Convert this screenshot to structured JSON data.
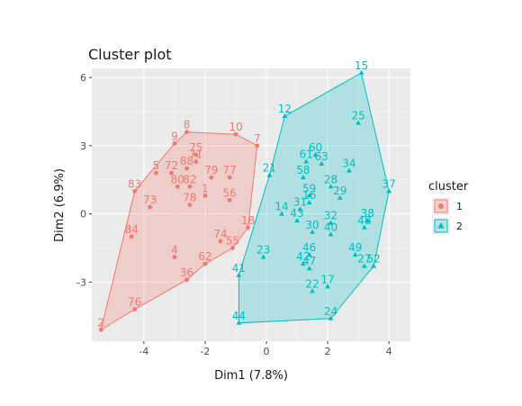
{
  "chart_data": {
    "type": "scatter",
    "title": "Cluster plot",
    "xlabel": "Dim1 (7.8%)",
    "ylabel": "Dim2 (6.9%)",
    "xlim": [
      -5.7,
      4.7
    ],
    "ylim": [
      -5.6,
      6.4
    ],
    "x_ticks": [
      -4,
      -2,
      0,
      2,
      4
    ],
    "y_ticks": [
      -3,
      0,
      3,
      6
    ],
    "grid": true,
    "legend_title": "cluster",
    "legend_position": "right",
    "clusters": [
      {
        "name": "1",
        "color": "#F8766D",
        "marker": "circle",
        "hull": [
          2,
          76,
          36,
          62,
          55,
          18,
          7,
          10,
          8,
          9,
          83
        ],
        "points": [
          {
            "label": "2",
            "x": -5.4,
            "y": -5.1
          },
          {
            "label": "76",
            "x": -4.3,
            "y": -4.2
          },
          {
            "label": "84",
            "x": -4.4,
            "y": -1.0
          },
          {
            "label": "83",
            "x": -4.3,
            "y": 1.0
          },
          {
            "label": "73",
            "x": -3.8,
            "y": 0.3
          },
          {
            "label": "5",
            "x": -3.6,
            "y": 1.8
          },
          {
            "label": "72",
            "x": -3.1,
            "y": 1.8
          },
          {
            "label": "80",
            "x": -2.9,
            "y": 1.2
          },
          {
            "label": "82",
            "x": -2.5,
            "y": 1.2
          },
          {
            "label": "9",
            "x": -3.0,
            "y": 3.1
          },
          {
            "label": "8",
            "x": -2.6,
            "y": 3.6
          },
          {
            "label": "4",
            "x": -3.0,
            "y": -1.9
          },
          {
            "label": "75",
            "x": -2.3,
            "y": 2.6
          },
          {
            "label": "71",
            "x": -2.3,
            "y": 2.3
          },
          {
            "label": "88",
            "x": -2.6,
            "y": 2.0
          },
          {
            "label": "79",
            "x": -1.8,
            "y": 1.6
          },
          {
            "label": "1",
            "x": -2.0,
            "y": 0.8
          },
          {
            "label": "78",
            "x": -2.5,
            "y": 0.4
          },
          {
            "label": "77",
            "x": -1.2,
            "y": 1.6
          },
          {
            "label": "56",
            "x": -1.2,
            "y": 0.6
          },
          {
            "label": "10",
            "x": -1.0,
            "y": 3.5
          },
          {
            "label": "7",
            "x": -0.3,
            "y": 3.0
          },
          {
            "label": "18",
            "x": -0.6,
            "y": -0.6
          },
          {
            "label": "74",
            "x": -1.5,
            "y": -1.2
          },
          {
            "label": "55",
            "x": -1.1,
            "y": -1.5
          },
          {
            "label": "62",
            "x": -2.0,
            "y": -2.2
          },
          {
            "label": "36",
            "x": -2.6,
            "y": -2.9
          }
        ]
      },
      {
        "name": "2",
        "color": "#00BFC4",
        "marker": "triangle",
        "hull": [
          44,
          41,
          21,
          12,
          15,
          37,
          52,
          24
        ],
        "points": [
          {
            "label": "15",
            "x": 3.1,
            "y": 6.2
          },
          {
            "label": "12",
            "x": 0.6,
            "y": 4.3
          },
          {
            "label": "25",
            "x": 3.0,
            "y": 4.0
          },
          {
            "label": "21",
            "x": 0.1,
            "y": 1.7
          },
          {
            "label": "60",
            "x": 1.6,
            "y": 2.6
          },
          {
            "label": "61",
            "x": 1.3,
            "y": 2.3
          },
          {
            "label": "63",
            "x": 1.8,
            "y": 2.2
          },
          {
            "label": "34",
            "x": 2.7,
            "y": 1.9
          },
          {
            "label": "58",
            "x": 1.2,
            "y": 1.6
          },
          {
            "label": "28",
            "x": 2.1,
            "y": 1.2
          },
          {
            "label": "59",
            "x": 1.4,
            "y": 0.8
          },
          {
            "label": "29",
            "x": 2.4,
            "y": 0.7
          },
          {
            "label": "16",
            "x": 1.4,
            "y": 0.5
          },
          {
            "label": "37",
            "x": 4.0,
            "y": 1.0
          },
          {
            "label": "14",
            "x": 0.5,
            "y": 0.0
          },
          {
            "label": "31",
            "x": 1.1,
            "y": 0.2
          },
          {
            "label": "43",
            "x": 1.0,
            "y": -0.3
          },
          {
            "label": "32",
            "x": 2.1,
            "y": -0.4
          },
          {
            "label": "38",
            "x": 3.3,
            "y": -0.3
          },
          {
            "label": "48",
            "x": 3.2,
            "y": -0.6
          },
          {
            "label": "30",
            "x": 1.5,
            "y": -0.8
          },
          {
            "label": "40",
            "x": 2.1,
            "y": -0.9
          },
          {
            "label": "23",
            "x": -0.1,
            "y": -1.9
          },
          {
            "label": "46",
            "x": 1.4,
            "y": -1.8
          },
          {
            "label": "49",
            "x": 2.9,
            "y": -1.8
          },
          {
            "label": "42",
            "x": 1.2,
            "y": -2.2
          },
          {
            "label": "47",
            "x": 1.4,
            "y": -2.4
          },
          {
            "label": "27",
            "x": 3.2,
            "y": -2.3
          },
          {
            "label": "52",
            "x": 3.5,
            "y": -2.3
          },
          {
            "label": "41",
            "x": -0.9,
            "y": -2.7
          },
          {
            "label": "17",
            "x": 2.0,
            "y": -3.2
          },
          {
            "label": "22",
            "x": 1.5,
            "y": -3.4
          },
          {
            "label": "24",
            "x": 2.1,
            "y": -4.6
          },
          {
            "label": "44",
            "x": -0.9,
            "y": -4.8
          }
        ]
      }
    ]
  }
}
